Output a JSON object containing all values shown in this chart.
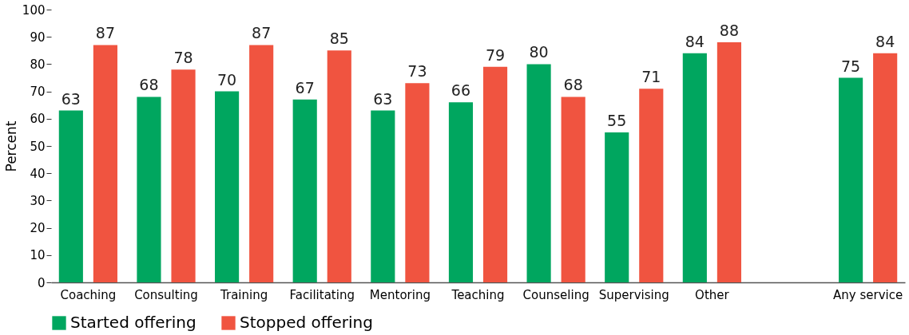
{
  "chart_data": {
    "type": "bar",
    "ylabel": "Percent",
    "categories": [
      "Coaching",
      "Consulting",
      "Training",
      "Facilitating",
      "Mentoring",
      "Teaching",
      "Counseling",
      "Supervising",
      "Other",
      null,
      "Any service"
    ],
    "series": [
      {
        "name": "Started offering",
        "color": "#00a65f",
        "values": [
          63,
          68,
          70,
          67,
          63,
          66,
          80,
          55,
          84,
          null,
          75
        ]
      },
      {
        "name": "Stopped offering",
        "color": "#f05440",
        "values": [
          87,
          78,
          87,
          85,
          73,
          79,
          68,
          71,
          88,
          null,
          84
        ]
      }
    ],
    "ylim": [
      0,
      100
    ],
    "yticks": [
      0,
      10,
      20,
      30,
      40,
      50,
      60,
      70,
      80,
      90,
      100
    ],
    "grid": false,
    "legend": "bottom left",
    "data_labels": true
  }
}
